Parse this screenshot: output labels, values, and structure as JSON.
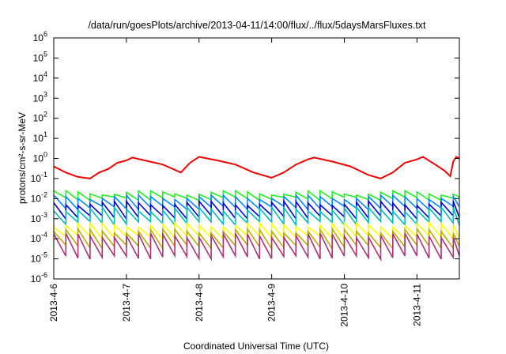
{
  "chart_data": {
    "type": "line",
    "title": "/data/run/goesPlots/archive/2013-04-11/14:00/flux/../flux/5daysMarsFluxes.txt",
    "xlabel": "Coordinated Universal Time (UTC)",
    "ylabel": "protons/cm²-s-sr-MeV",
    "y_scale": "log",
    "ylim": [
      1e-06,
      1000000.0
    ],
    "y_ticks": [
      {
        "base": "10",
        "exp": "-6"
      },
      {
        "base": "10",
        "exp": "-5"
      },
      {
        "base": "10",
        "exp": "-4"
      },
      {
        "base": "10",
        "exp": "-3"
      },
      {
        "base": "10",
        "exp": "-2"
      },
      {
        "base": "10",
        "exp": "-1"
      },
      {
        "base": "10",
        "exp": "0"
      },
      {
        "base": "10",
        "exp": "1"
      },
      {
        "base": "10",
        "exp": "2"
      },
      {
        "base": "10",
        "exp": "3"
      },
      {
        "base": "10",
        "exp": "4"
      },
      {
        "base": "10",
        "exp": "5"
      },
      {
        "base": "10",
        "exp": "6"
      }
    ],
    "xlim": [
      "2013-04-06 00:00",
      "2013-04-11 14:00"
    ],
    "x_ticks": [
      "2013-4-6",
      "2013-4-7",
      "2013-4-8",
      "2013-4-9",
      "2013-4-10",
      "2013-4-11"
    ],
    "grid": false,
    "sawtooth_period_hours": 4,
    "series": [
      {
        "color": "#ee0000",
        "width": 2.0,
        "values": [
          [
            "2013-04-06 00:00",
            0.4
          ],
          [
            "2013-04-06 04:00",
            0.2
          ],
          [
            "2013-04-06 08:00",
            0.12
          ],
          [
            "2013-04-06 12:00",
            0.1
          ],
          [
            "2013-04-06 15:00",
            0.2
          ],
          [
            "2013-04-06 18:00",
            0.3
          ],
          [
            "2013-04-06 21:00",
            0.6
          ],
          [
            "2013-04-07 00:00",
            0.8
          ],
          [
            "2013-04-07 02:00",
            1.1
          ],
          [
            "2013-04-07 06:00",
            0.8
          ],
          [
            "2013-04-07 12:00",
            0.5
          ],
          [
            "2013-04-07 18:00",
            0.2
          ],
          [
            "2013-04-07 21:00",
            0.6
          ],
          [
            "2013-04-08 00:00",
            1.2
          ],
          [
            "2013-04-08 06:00",
            0.8
          ],
          [
            "2013-04-08 12:00",
            0.5
          ],
          [
            "2013-04-08 18:00",
            0.2
          ],
          [
            "2013-04-09 00:00",
            0.11
          ],
          [
            "2013-04-09 04:00",
            0.2
          ],
          [
            "2013-04-09 08:00",
            0.5
          ],
          [
            "2013-04-09 12:00",
            0.9
          ],
          [
            "2013-04-09 14:00",
            1.1
          ],
          [
            "2013-04-09 20:00",
            0.7
          ],
          [
            "2013-04-10 02:00",
            0.4
          ],
          [
            "2013-04-10 08:00",
            0.15
          ],
          [
            "2013-04-10 12:00",
            0.1
          ],
          [
            "2013-04-10 16:00",
            0.2
          ],
          [
            "2013-04-10 20:00",
            0.6
          ],
          [
            "2013-04-11 00:00",
            0.9
          ],
          [
            "2013-04-11 02:00",
            1.2
          ],
          [
            "2013-04-11 06:00",
            0.5
          ],
          [
            "2013-04-11 09:00",
            0.25
          ],
          [
            "2013-04-11 11:00",
            0.13
          ],
          [
            "2013-04-11 12:00",
            0.7
          ],
          [
            "2013-04-11 13:00",
            1.2
          ],
          [
            "2013-04-11 14:00",
            1.0
          ]
        ]
      },
      {
        "color": "#22ee22",
        "width": 1.6,
        "high": 0.02,
        "low": 0.01
      },
      {
        "color": "#0088ff",
        "width": 1.6,
        "high": 0.012,
        "low": 0.0035
      },
      {
        "color": "#0000cc",
        "width": 1.6,
        "high": 0.006,
        "low": 0.0012
      },
      {
        "color": "#00bbbb",
        "width": 1.6,
        "high": 0.003,
        "low": 0.0006
      },
      {
        "color": "#ffff00",
        "width": 1.6,
        "high": 0.0005,
        "low": 0.00012
      },
      {
        "color": "#bbaa00",
        "width": 1.6,
        "high": 0.00025,
        "low": 4e-05
      },
      {
        "color": "#aa3377",
        "width": 1.6,
        "high": 0.00015,
        "low": 1.2e-05
      }
    ]
  }
}
